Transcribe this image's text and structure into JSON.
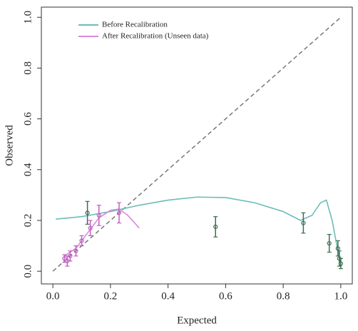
{
  "chart_data": {
    "type": "line",
    "x_label": "Expected",
    "y_label": "Observed",
    "xlim": [
      -0.04,
      1.04
    ],
    "ylim": [
      -0.05,
      1.04
    ],
    "xticks": [
      {
        "value": 0,
        "label": "0.0"
      },
      0.2,
      0.4,
      0.6,
      0.8,
      {
        "value": 1,
        "label": "1.0"
      }
    ],
    "yticks": [
      {
        "value": 0,
        "label": "0.0"
      },
      0.2,
      0.4,
      0.6,
      0.8,
      {
        "value": 1,
        "label": "1.0"
      }
    ],
    "diagonal": true,
    "series": [
      {
        "name": "Before Recalibration",
        "color": "#6bbcbc",
        "x": [
          0.01,
          0.1,
          0.2,
          0.3,
          0.4,
          0.5,
          0.6,
          0.7,
          0.8,
          0.86,
          0.9,
          0.93,
          0.95,
          0.97,
          0.99,
          1.0
        ],
        "values": [
          0.205,
          0.215,
          0.235,
          0.26,
          0.28,
          0.292,
          0.29,
          0.27,
          0.235,
          0.2,
          0.22,
          0.27,
          0.28,
          0.2,
          0.08,
          0.03
        ],
        "points": {
          "color": "#3d6e50",
          "x": [
            0.12,
            0.565,
            0.87,
            0.96,
            0.99,
            0.995,
            1.0
          ],
          "values": [
            0.23,
            0.175,
            0.19,
            0.11,
            0.09,
            0.05,
            0.03
          ],
          "errors": [
            0.045,
            0.04,
            0.04,
            0.035,
            0.03,
            0.03,
            0.02
          ]
        }
      },
      {
        "name": "After Recalibration (Unseen data)",
        "color": "#d98ad9",
        "x": [
          0.04,
          0.08,
          0.12,
          0.16,
          0.2,
          0.23,
          0.26,
          0.3
        ],
        "values": [
          0.06,
          0.09,
          0.15,
          0.21,
          0.24,
          0.245,
          0.22,
          0.17
        ],
        "points": {
          "color": "#c060c0",
          "x": [
            0.04,
            0.05,
            0.06,
            0.08,
            0.1,
            0.13,
            0.16,
            0.23
          ],
          "values": [
            0.05,
            0.04,
            0.06,
            0.08,
            0.12,
            0.17,
            0.22,
            0.23
          ],
          "errors": [
            0.015,
            0.02,
            0.02,
            0.02,
            0.02,
            0.03,
            0.04,
            0.04
          ]
        }
      }
    ]
  }
}
